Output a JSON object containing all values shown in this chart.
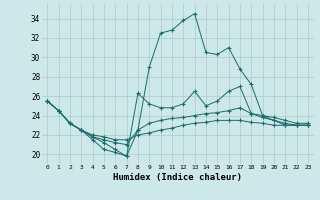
{
  "xlabel": "Humidex (Indice chaleur)",
  "bg_color": "#cde8e8",
  "grid_color": "#b0c8c8",
  "line_color": "#1a6b6b",
  "xlim": [
    -0.5,
    23.5
  ],
  "ylim": [
    19.0,
    35.5
  ],
  "xticks": [
    0,
    1,
    2,
    3,
    4,
    5,
    6,
    7,
    8,
    9,
    10,
    11,
    12,
    13,
    14,
    15,
    16,
    17,
    18,
    19,
    20,
    21,
    22,
    23
  ],
  "yticks": [
    20,
    22,
    24,
    26,
    28,
    30,
    32,
    34
  ],
  "series": [
    [
      25.5,
      24.5,
      23.2,
      22.5,
      21.5,
      20.5,
      20.2,
      19.8,
      22.5,
      29.0,
      32.5,
      32.8,
      33.8,
      34.5,
      30.5,
      30.3,
      31.0,
      28.8,
      27.2,
      24.0,
      23.5,
      23.0,
      23.0,
      23.0
    ],
    [
      25.5,
      24.5,
      23.2,
      22.5,
      21.8,
      21.2,
      20.5,
      19.8,
      26.3,
      25.2,
      24.8,
      24.8,
      25.2,
      26.5,
      25.0,
      25.5,
      26.5,
      27.0,
      24.2,
      24.0,
      23.8,
      23.5,
      23.2,
      23.2
    ],
    [
      25.5,
      24.5,
      23.2,
      22.5,
      21.8,
      21.5,
      21.2,
      21.0,
      22.5,
      23.2,
      23.5,
      23.7,
      23.8,
      24.0,
      24.2,
      24.3,
      24.5,
      24.8,
      24.2,
      23.8,
      23.5,
      23.2,
      23.0,
      23.0
    ],
    [
      25.5,
      24.5,
      23.2,
      22.5,
      22.0,
      21.8,
      21.5,
      21.5,
      22.0,
      22.2,
      22.5,
      22.7,
      23.0,
      23.2,
      23.3,
      23.5,
      23.5,
      23.5,
      23.3,
      23.2,
      23.0,
      23.0,
      23.0,
      23.0
    ]
  ]
}
